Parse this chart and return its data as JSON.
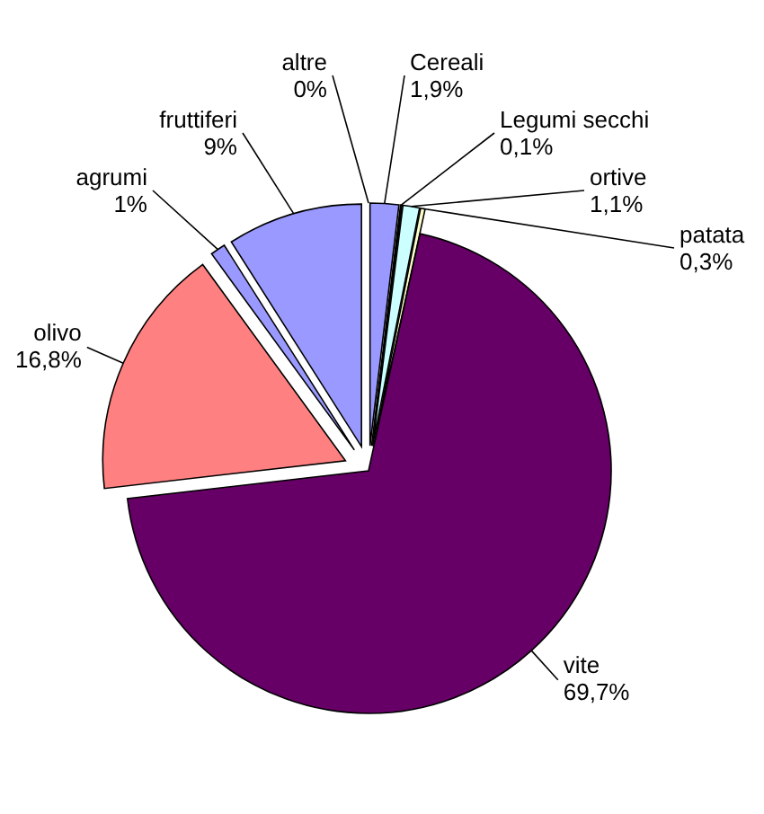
{
  "chart_data": {
    "type": "pie",
    "categories": [
      "Cereali",
      "Legumi secchi",
      "ortive",
      "patata",
      "vite",
      "olivo",
      "agrumi",
      "fruttiferi",
      "altre"
    ],
    "values": [
      1.9,
      0.1,
      1.1,
      0.3,
      69.7,
      16.8,
      1,
      9,
      0
    ],
    "colors": [
      "#9999ff",
      "#993366",
      "#ccffff",
      "#ffffcc",
      "#660066",
      "#ff8080",
      "#9999ff",
      "#9999ff",
      "#9999ff"
    ],
    "value_labels": [
      "1,9%",
      "0,1%",
      "1,1%",
      "0,3%",
      "69,7%",
      "16,8%",
      "1%",
      "9%",
      "0%"
    ]
  }
}
